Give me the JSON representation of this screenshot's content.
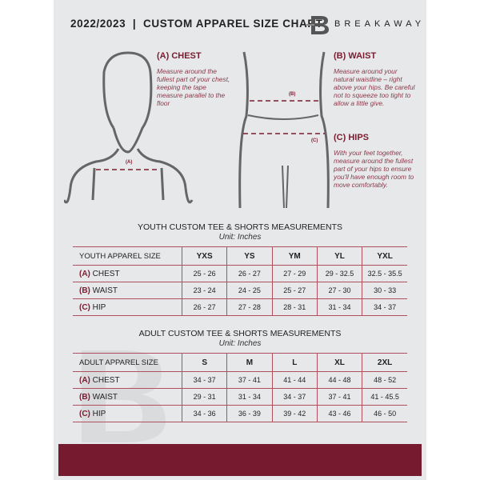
{
  "header": {
    "title": "2022/2023  |  CUSTOM APPAREL SIZE CHART",
    "brand": "BREAKAWAY"
  },
  "guide": {
    "chest": {
      "heading": "(A) CHEST",
      "text": "Measure around the fullest part of your chest, keeping the tape measure parallel to the floor",
      "marker": "(A)"
    },
    "waist": {
      "heading": "(B) WAIST",
      "text": "Measure around your natural waistline – right above your hips. Be careful not to squeeze too tight to allow a little give.",
      "marker": "(B)"
    },
    "hips": {
      "heading": "(C) HIPS",
      "text": "With your feet together, measure around the fullest part of your hips to ensure you'll have enough room to move comfortably.",
      "marker": "(C)"
    }
  },
  "youth": {
    "title": "YOUTH CUSTOM TEE & SHORTS MEASUREMENTS",
    "unit": "Unit: Inches",
    "header": "YOUTH APPAREL SIZE",
    "sizes": [
      "YXS",
      "YS",
      "YM",
      "YL",
      "YXL"
    ],
    "rows": [
      {
        "letter": "(A)",
        "label": "CHEST",
        "values": [
          "25 - 26",
          "26 - 27",
          "27 - 29",
          "29 - 32.5",
          "32.5 - 35.5"
        ]
      },
      {
        "letter": "(B)",
        "label": "WAIST",
        "values": [
          "23 - 24",
          "24 - 25",
          "25 - 27",
          "27 - 30",
          "30 - 33"
        ]
      },
      {
        "letter": "(C)",
        "label": "HIP",
        "values": [
          "26 - 27",
          "27 - 28",
          "28 - 31",
          "31 - 34",
          "34 - 37"
        ]
      }
    ]
  },
  "adult": {
    "title": "ADULT CUSTOM TEE & SHORTS MEASUREMENTS",
    "unit": "Unit: Inches",
    "header": "ADULT APPAREL SIZE",
    "sizes": [
      "S",
      "M",
      "L",
      "XL",
      "2XL"
    ],
    "rows": [
      {
        "letter": "(A)",
        "label": "CHEST",
        "values": [
          "34 - 37",
          "37 - 41",
          "41 - 44",
          "44 - 48",
          "48 - 52"
        ]
      },
      {
        "letter": "(B)",
        "label": "WAIST",
        "values": [
          "29 - 31",
          "31 - 34",
          "34 - 37",
          "37 - 41",
          "41 - 45.5"
        ]
      },
      {
        "letter": "(C)",
        "label": "HIP",
        "values": [
          "34 - 36",
          "36 - 39",
          "39 - 42",
          "43 - 46",
          "46 - 50"
        ]
      }
    ]
  },
  "colors": {
    "accent": "#7b1c30",
    "panel": "#e7e8ea"
  }
}
